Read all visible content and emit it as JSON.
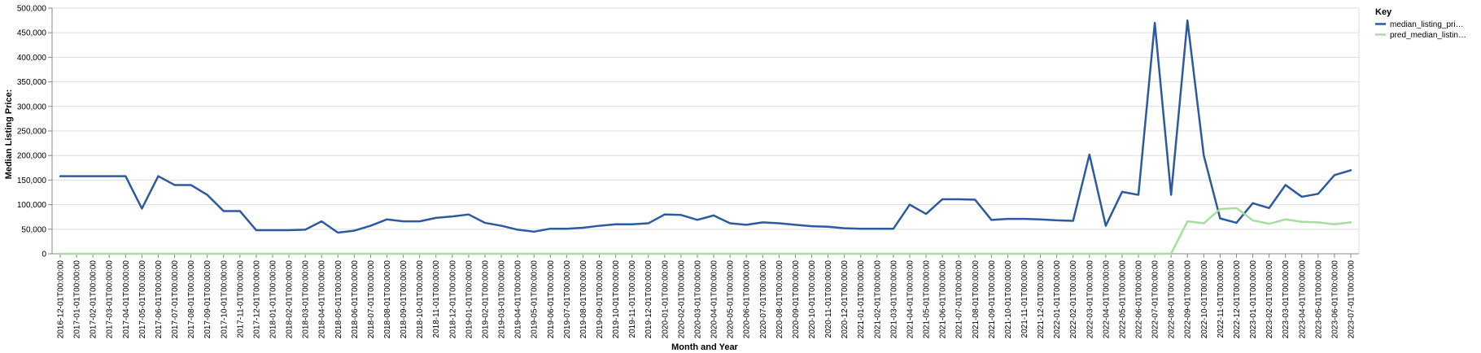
{
  "chart_data": {
    "type": "line",
    "xlabel": "Month and Year",
    "ylabel": "Median Listing Price:",
    "ylim": [
      0,
      500000
    ],
    "y_ticks": [
      "0",
      "50,000",
      "100,000",
      "150,000",
      "200,000",
      "250,000",
      "300,000",
      "350,000",
      "400,000",
      "450,000",
      "500,000"
    ],
    "grid": true,
    "legend": {
      "title": "Key",
      "placement": "top-right",
      "entries": [
        "median_listing_pri…",
        "pred_median_listin…"
      ]
    },
    "x": [
      "2016-12-01T00:00:00",
      "2017-01-01T00:00:00",
      "2017-02-01T00:00:00",
      "2017-03-01T00:00:00",
      "2017-04-01T00:00:00",
      "2017-05-01T00:00:00",
      "2017-06-01T00:00:00",
      "2017-07-01T00:00:00",
      "2017-08-01T00:00:00",
      "2017-09-01T00:00:00",
      "2017-10-01T00:00:00",
      "2017-11-01T00:00:00",
      "2017-12-01T00:00:00",
      "2018-01-01T00:00:00",
      "2018-02-01T00:00:00",
      "2018-03-01T00:00:00",
      "2018-04-01T00:00:00",
      "2018-05-01T00:00:00",
      "2018-06-01T00:00:00",
      "2018-07-01T00:00:00",
      "2018-08-01T00:00:00",
      "2018-09-01T00:00:00",
      "2018-10-01T00:00:00",
      "2018-11-01T00:00:00",
      "2018-12-01T00:00:00",
      "2019-01-01T00:00:00",
      "2019-02-01T00:00:00",
      "2019-03-01T00:00:00",
      "2019-04-01T00:00:00",
      "2019-05-01T00:00:00",
      "2019-06-01T00:00:00",
      "2019-07-01T00:00:00",
      "2019-08-01T00:00:00",
      "2019-09-01T00:00:00",
      "2019-10-01T00:00:00",
      "2019-11-01T00:00:00",
      "2019-12-01T00:00:00",
      "2020-01-01T00:00:00",
      "2020-02-01T00:00:00",
      "2020-03-01T00:00:00",
      "2020-04-01T00:00:00",
      "2020-05-01T00:00:00",
      "2020-06-01T00:00:00",
      "2020-07-01T00:00:00",
      "2020-08-01T00:00:00",
      "2020-09-01T00:00:00",
      "2020-10-01T00:00:00",
      "2020-11-01T00:00:00",
      "2020-12-01T00:00:00",
      "2021-01-01T00:00:00",
      "2021-02-01T00:00:00",
      "2021-03-01T00:00:00",
      "2021-04-01T00:00:00",
      "2021-05-01T00:00:00",
      "2021-06-01T00:00:00",
      "2021-07-01T00:00:00",
      "2021-08-01T00:00:00",
      "2021-09-01T00:00:00",
      "2021-10-01T00:00:00",
      "2021-11-01T00:00:00",
      "2021-12-01T00:00:00",
      "2022-01-01T00:00:00",
      "2022-02-01T00:00:00",
      "2022-03-01T00:00:00",
      "2022-04-01T00:00:00",
      "2022-05-01T00:00:00",
      "2022-06-01T00:00:00",
      "2022-07-01T00:00:00",
      "2022-08-01T00:00:00",
      "2022-09-01T00:00:00",
      "2022-10-01T00:00:00",
      "2022-11-01T00:00:00",
      "2022-12-01T00:00:00",
      "2023-01-01T00:00:00",
      "2023-02-01T00:00:00",
      "2023-03-01T00:00:00",
      "2023-04-01T00:00:00",
      "2023-05-01T00:00:00",
      "2023-06-01T00:00:00",
      "2023-07-01T00:00:00"
    ],
    "series": [
      {
        "name": "median_listing_pri…",
        "color": "#2c5aa0",
        "values": [
          158000,
          158000,
          158000,
          158000,
          158000,
          92000,
          158000,
          140000,
          140000,
          120000,
          87000,
          87000,
          48000,
          48000,
          48000,
          49000,
          66000,
          43000,
          47000,
          57000,
          70000,
          66000,
          66000,
          73000,
          76000,
          80000,
          63000,
          57000,
          49000,
          45000,
          51000,
          51000,
          53000,
          57000,
          60000,
          60000,
          62000,
          80000,
          79000,
          69000,
          78000,
          62000,
          59000,
          64000,
          62000,
          59000,
          56000,
          55000,
          52000,
          51000,
          51000,
          51000,
          100000,
          81000,
          111000,
          111000,
          110000,
          69000,
          71000,
          71000,
          70000,
          68000,
          67000,
          202000,
          57000,
          126000,
          120000,
          470000,
          120000,
          475000,
          200000,
          72000,
          63000,
          103000,
          93000,
          140000,
          116000,
          122000,
          160000,
          170000
        ]
      },
      {
        "name": "pred_median_listin…",
        "color": "#a8dca0",
        "values": [
          0,
          0,
          0,
          0,
          0,
          0,
          0,
          0,
          0,
          0,
          0,
          0,
          0,
          0,
          0,
          0,
          0,
          0,
          0,
          0,
          0,
          0,
          0,
          0,
          0,
          0,
          0,
          0,
          0,
          0,
          0,
          0,
          0,
          0,
          0,
          0,
          0,
          0,
          0,
          0,
          0,
          0,
          0,
          0,
          0,
          0,
          0,
          0,
          0,
          0,
          0,
          0,
          0,
          0,
          0,
          0,
          0,
          0,
          0,
          0,
          0,
          0,
          0,
          0,
          0,
          0,
          0,
          0,
          0,
          66000,
          62000,
          91000,
          93000,
          68000,
          61000,
          70000,
          65000,
          64000,
          60000,
          64000
        ]
      }
    ]
  }
}
